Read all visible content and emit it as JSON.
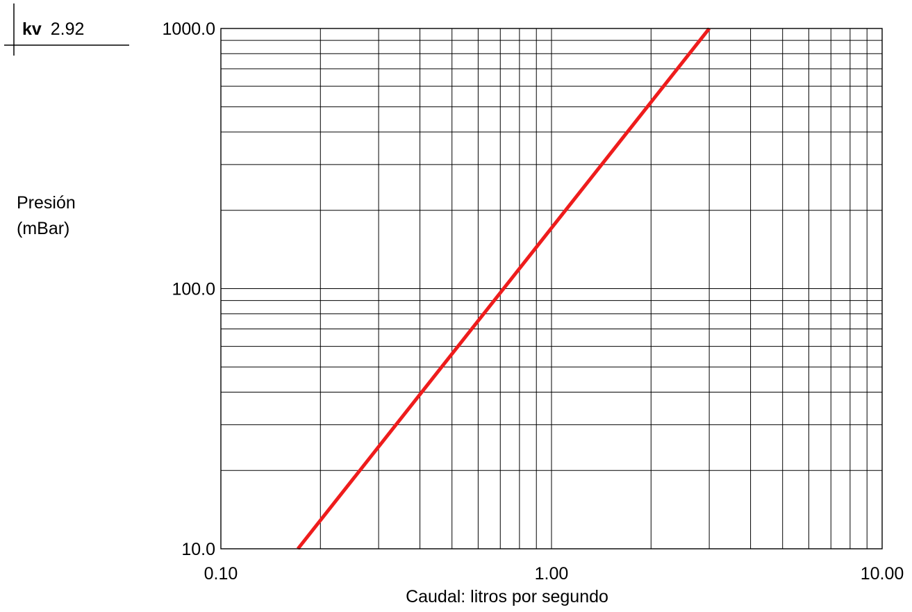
{
  "header": {
    "param_label": "kv",
    "param_value": "2.92"
  },
  "chart_data": {
    "type": "line",
    "title": "",
    "xlabel": "Caudal: litros por segundo",
    "ylabel_lines": [
      "Presión",
      "(mBar)"
    ],
    "x_scale": "log",
    "y_scale": "log",
    "xlim": [
      0.1,
      10
    ],
    "ylim": [
      10,
      1000
    ],
    "grid": true,
    "x_ticks": [
      {
        "value": 0.1,
        "label": "0.10"
      },
      {
        "value": 1,
        "label": "1.00"
      },
      {
        "value": 10,
        "label": "10.00"
      }
    ],
    "y_ticks": [
      {
        "value": 10,
        "label": "10.0"
      },
      {
        "value": 100,
        "label": "100.0"
      },
      {
        "value": 1000,
        "label": "1000.0"
      }
    ],
    "series": [
      {
        "color": "#ee1c1c",
        "x": [
          0.171,
          3.0
        ],
        "y": [
          10,
          1000
        ]
      }
    ]
  }
}
